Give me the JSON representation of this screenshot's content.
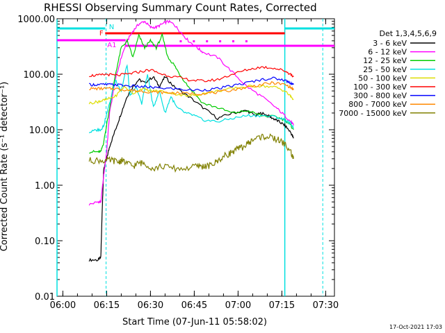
{
  "chart_data": {
    "type": "line",
    "title": "RHESSI Observing Summary Count Rates, Corrected",
    "xlabel": "Start Time (07-Jun-11 05:58:02)",
    "ylabel": "Corrected Count Rate (s⁻¹ detector⁻¹)",
    "x_ticks": [
      "06:00",
      "06:15",
      "06:30",
      "06:45",
      "07:00",
      "07:15",
      "07:30"
    ],
    "y_ticks": [
      "1000.00",
      "100.00",
      "10.00",
      "1.00",
      "0.10",
      "0.01"
    ],
    "xlim": [
      0,
      95
    ],
    "ylim": [
      0.01,
      1000
    ],
    "y_scale": "log",
    "legend_title": "Det 1,3,4,5,6,9",
    "legend_position": "right",
    "series": [
      {
        "name": "3 - 6 keV",
        "color": "#000000",
        "x": [
          11,
          14,
          15,
          15.5,
          16,
          17,
          18,
          20,
          22,
          24,
          26,
          28,
          30,
          33,
          35,
          37,
          40,
          45,
          50,
          55,
          60,
          65,
          68,
          70,
          72,
          74,
          76,
          78,
          80,
          81
        ],
        "y": [
          0.045,
          0.045,
          0.05,
          0.4,
          2,
          3,
          5,
          10,
          20,
          40,
          60,
          80,
          70,
          90,
          60,
          90,
          60,
          40,
          25,
          16,
          20,
          22,
          18,
          20,
          18,
          16,
          14,
          12,
          9,
          7
        ]
      },
      {
        "name": "6 - 12 keV",
        "color": "#ff00ff",
        "x": [
          11,
          14,
          15,
          16,
          17,
          18,
          20,
          22,
          24,
          26,
          28,
          30,
          32,
          34,
          36,
          38,
          40,
          42,
          45,
          48,
          50,
          55,
          60,
          65,
          70,
          75,
          78,
          80,
          81
        ],
        "y": [
          0.45,
          0.5,
          0.5,
          1.5,
          4,
          20,
          80,
          200,
          400,
          600,
          800,
          900,
          700,
          700,
          800,
          900,
          800,
          600,
          400,
          300,
          250,
          200,
          110,
          60,
          40,
          25,
          18,
          14,
          12
        ]
      },
      {
        "name": "12 - 25 keV",
        "color": "#00cc00",
        "x": [
          11,
          14,
          15,
          16,
          18,
          20,
          22,
          24,
          26,
          28,
          30,
          32,
          34,
          36,
          38,
          40,
          42,
          45,
          50,
          55,
          60,
          65,
          70,
          75,
          78,
          80,
          81
        ],
        "y": [
          4,
          4,
          4,
          6,
          25,
          100,
          300,
          400,
          200,
          500,
          300,
          400,
          300,
          500,
          200,
          150,
          100,
          60,
          30,
          25,
          20,
          22,
          18,
          17,
          15,
          12,
          10
        ]
      },
      {
        "name": "25 - 50 keV",
        "color": "#00e0e0",
        "x": [
          11,
          14,
          15,
          16,
          18,
          20,
          22,
          24,
          25,
          27,
          29,
          31,
          33,
          35,
          37,
          39,
          41,
          44,
          47,
          50,
          55,
          60,
          65,
          70,
          75,
          78,
          80,
          81
        ],
        "y": [
          9,
          10,
          10,
          12,
          30,
          80,
          50,
          150,
          40,
          60,
          30,
          100,
          25,
          50,
          20,
          40,
          25,
          20,
          18,
          15,
          14,
          16,
          18,
          18,
          17,
          15,
          13,
          11
        ]
      },
      {
        "name": "50 - 100 keV",
        "color": "#dddd00",
        "x": [
          11,
          14,
          15,
          17,
          20,
          23,
          26,
          29,
          32,
          35,
          40,
          45,
          50,
          55,
          60,
          65,
          70,
          75,
          78,
          80,
          81
        ],
        "y": [
          30,
          32,
          33,
          35,
          40,
          60,
          45,
          55,
          50,
          50,
          45,
          40,
          45,
          50,
          55,
          60,
          62,
          58,
          50,
          40,
          35
        ]
      },
      {
        "name": "100 - 300 keV",
        "color": "#ff0000",
        "x": [
          11,
          14,
          17,
          20,
          24,
          28,
          32,
          36,
          40,
          45,
          50,
          55,
          60,
          65,
          70,
          74,
          78,
          80,
          81
        ],
        "y": [
          95,
          95,
          100,
          95,
          100,
          110,
          120,
          100,
          90,
          80,
          75,
          80,
          100,
          120,
          135,
          130,
          115,
          100,
          90
        ]
      },
      {
        "name": "300 - 800 keV",
        "color": "#0000ff",
        "x": [
          11,
          14,
          17,
          20,
          24,
          28,
          32,
          36,
          40,
          45,
          50,
          55,
          60,
          65,
          70,
          74,
          78,
          80,
          81
        ],
        "y": [
          65,
          65,
          65,
          65,
          62,
          60,
          58,
          56,
          55,
          52,
          52,
          55,
          62,
          70,
          80,
          85,
          78,
          70,
          65
        ]
      },
      {
        "name": "800 - 7000 keV",
        "color": "#ff8800",
        "x": [
          11,
          14,
          17,
          20,
          24,
          28,
          32,
          36,
          40,
          45,
          50,
          55,
          60,
          65,
          70,
          74,
          78,
          80,
          81
        ],
        "y": [
          55,
          55,
          55,
          55,
          52,
          50,
          48,
          47,
          46,
          45,
          45,
          47,
          52,
          58,
          65,
          70,
          65,
          58,
          52
        ]
      },
      {
        "name": "7000 - 15000 keV",
        "color": "#808000",
        "x": [
          11,
          14,
          17,
          19,
          21,
          22,
          24,
          26,
          28,
          30,
          33,
          36,
          40,
          44,
          48,
          50,
          52,
          54,
          56,
          58,
          60,
          62,
          64,
          66,
          68,
          70,
          72,
          74,
          76,
          78,
          80,
          81
        ],
        "y": [
          2.8,
          2.8,
          2.8,
          2.8,
          2.6,
          2.8,
          2.5,
          2.2,
          2.5,
          2.5,
          2.0,
          2.2,
          2.0,
          2.0,
          2.2,
          2.2,
          2.2,
          2.5,
          3,
          3.5,
          4,
          4.5,
          5,
          6,
          7,
          7.5,
          7.5,
          7,
          6.5,
          5.5,
          4,
          3
        ]
      }
    ],
    "annotations": {
      "flags": [
        {
          "label": "N",
          "color": "#00e0e0"
        },
        {
          "label": "F",
          "color": "#ff0000"
        },
        {
          "label": "A1",
          "color": "#ff00ff"
        }
      ],
      "timestamp": "17-Oct-2021 17:03"
    }
  }
}
